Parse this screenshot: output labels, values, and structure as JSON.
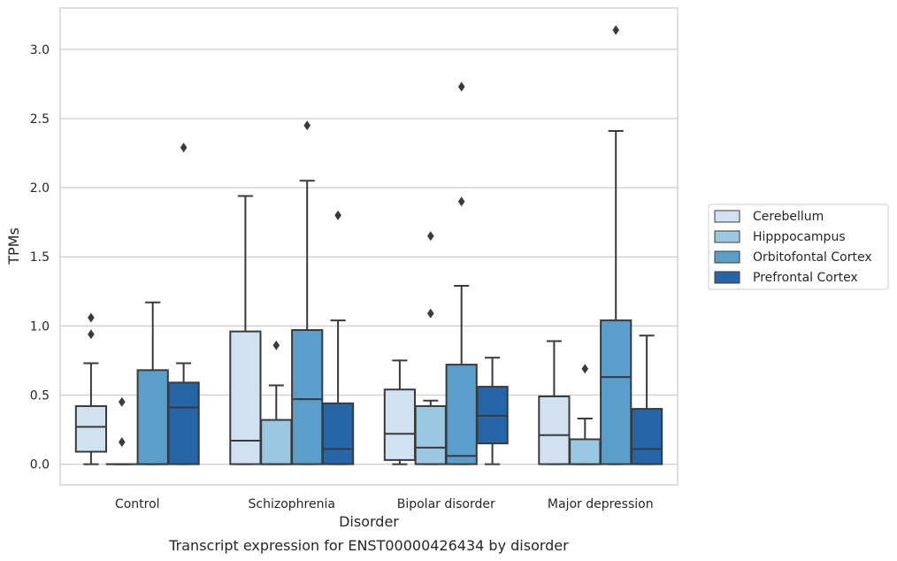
{
  "chart_data": {
    "type": "box",
    "caption": "Transcript expression for ENST00000426434 by disorder",
    "xlabel": "Disorder",
    "ylabel": "TPMs",
    "ylim": [
      -0.15,
      3.3
    ],
    "yticks": [
      "0.0",
      "0.5",
      "1.0",
      "1.5",
      "2.0",
      "2.5",
      "3.0"
    ],
    "grid": "horizontal",
    "legend_position": "right",
    "categories": [
      "Control",
      "Schizophrenia",
      "Bipolar disorder",
      "Major depression"
    ],
    "series": [
      {
        "name": "Cerebellum",
        "color": "#d0e1f2",
        "boxes": [
          {
            "whislo": 0.0,
            "q1": 0.09,
            "med": 0.27,
            "q3": 0.42,
            "whishi": 0.73,
            "fliers": [
              0.94,
              1.06
            ]
          },
          {
            "whislo": 0.0,
            "q1": 0.0,
            "med": 0.17,
            "q3": 0.96,
            "whishi": 1.94,
            "fliers": []
          },
          {
            "whislo": 0.0,
            "q1": 0.03,
            "med": 0.22,
            "q3": 0.54,
            "whishi": 0.75,
            "fliers": []
          },
          {
            "whislo": 0.0,
            "q1": 0.0,
            "med": 0.21,
            "q3": 0.49,
            "whishi": 0.89,
            "fliers": []
          }
        ]
      },
      {
        "name": "Hipppocampus",
        "color": "#9ac8e0",
        "boxes": [
          {
            "whislo": 0.0,
            "q1": 0.0,
            "med": 0.0,
            "q3": 0.0,
            "whishi": 0.0,
            "fliers": [
              0.16,
              0.45
            ]
          },
          {
            "whislo": 0.0,
            "q1": 0.0,
            "med": 0.0,
            "q3": 0.32,
            "whishi": 0.57,
            "fliers": [
              0.86
            ]
          },
          {
            "whislo": 0.0,
            "q1": 0.0,
            "med": 0.12,
            "q3": 0.42,
            "whishi": 0.46,
            "fliers": [
              1.09,
              1.65
            ]
          },
          {
            "whislo": 0.0,
            "q1": 0.0,
            "med": 0.0,
            "q3": 0.18,
            "whishi": 0.33,
            "fliers": [
              0.69
            ]
          }
        ]
      },
      {
        "name": "Orbitofontal Cortex",
        "color": "#5a9ecc",
        "boxes": [
          {
            "whislo": 0.0,
            "q1": 0.0,
            "med": 0.0,
            "q3": 0.68,
            "whishi": 1.17,
            "fliers": []
          },
          {
            "whislo": 0.0,
            "q1": 0.0,
            "med": 0.47,
            "q3": 0.97,
            "whishi": 2.05,
            "fliers": [
              2.45
            ]
          },
          {
            "whislo": 0.0,
            "q1": 0.0,
            "med": 0.06,
            "q3": 0.72,
            "whishi": 1.29,
            "fliers": [
              1.9,
              2.73
            ]
          },
          {
            "whislo": 0.0,
            "q1": 0.0,
            "med": 0.63,
            "q3": 1.04,
            "whishi": 2.41,
            "fliers": [
              3.14
            ]
          }
        ]
      },
      {
        "name": "Prefrontal Cortex",
        "color": "#2566a8",
        "boxes": [
          {
            "whislo": 0.0,
            "q1": 0.0,
            "med": 0.41,
            "q3": 0.59,
            "whishi": 0.73,
            "fliers": [
              2.29
            ]
          },
          {
            "whislo": 0.0,
            "q1": 0.0,
            "med": 0.11,
            "q3": 0.44,
            "whishi": 1.04,
            "fliers": [
              1.8
            ]
          },
          {
            "whislo": 0.0,
            "q1": 0.15,
            "med": 0.35,
            "q3": 0.56,
            "whishi": 0.77,
            "fliers": []
          },
          {
            "whislo": 0.0,
            "q1": 0.0,
            "med": 0.11,
            "q3": 0.4,
            "whishi": 0.93,
            "fliers": []
          }
        ]
      }
    ]
  }
}
